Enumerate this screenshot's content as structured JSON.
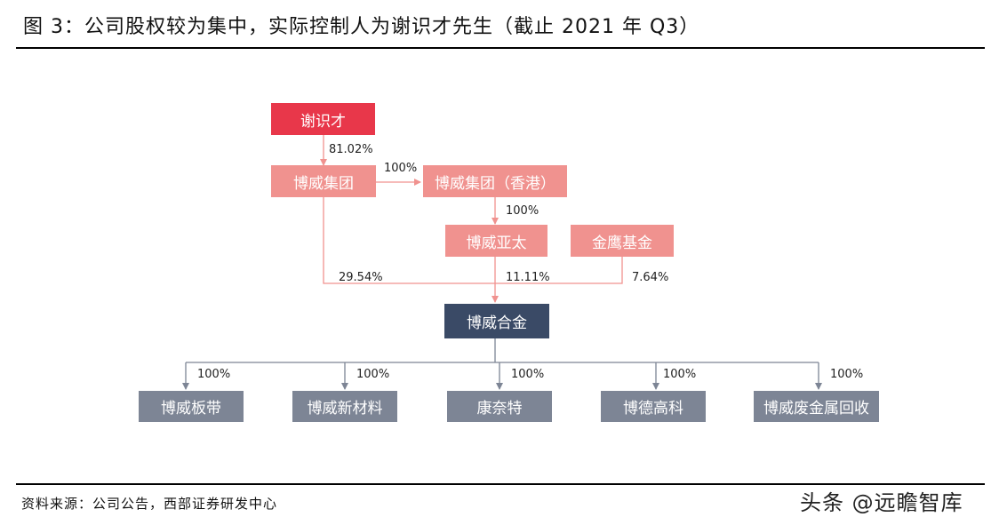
{
  "title": "图 3：公司股权较为集中，实际控制人为谢识才先生（截止 2021 年 Q3）",
  "source": "资料来源：公司公告，西部证券研发中心",
  "watermark": "头条 @远瞻智库",
  "colors": {
    "root": "#e8374a",
    "shareholder": "#f0928f",
    "company": "#3a4a66",
    "subsidiary": "#7d8595",
    "line_pink": "#f0928f",
    "line_gray": "#7d8595"
  },
  "diagram": {
    "nodes": {
      "xie": "谢识才",
      "group": "博威集团",
      "group_hk": "博威集团（香港）",
      "asia": "博威亚太",
      "jinying": "金鹰基金",
      "alloy": "博威合金",
      "sub1": "博威板带",
      "sub2": "博威新材料",
      "sub3": "康奈特",
      "sub4": "博德高科",
      "sub5": "博威废金属回收"
    },
    "stakes": {
      "xie_group": "81.02%",
      "group_hk": "100%",
      "hk_asia": "100%",
      "group_alloy": "29.54%",
      "asia_alloy": "11.11%",
      "jinying_alloy": "7.64%",
      "sub1": "100%",
      "sub2": "100%",
      "sub3": "100%",
      "sub4": "100%",
      "sub5": "100%"
    }
  }
}
